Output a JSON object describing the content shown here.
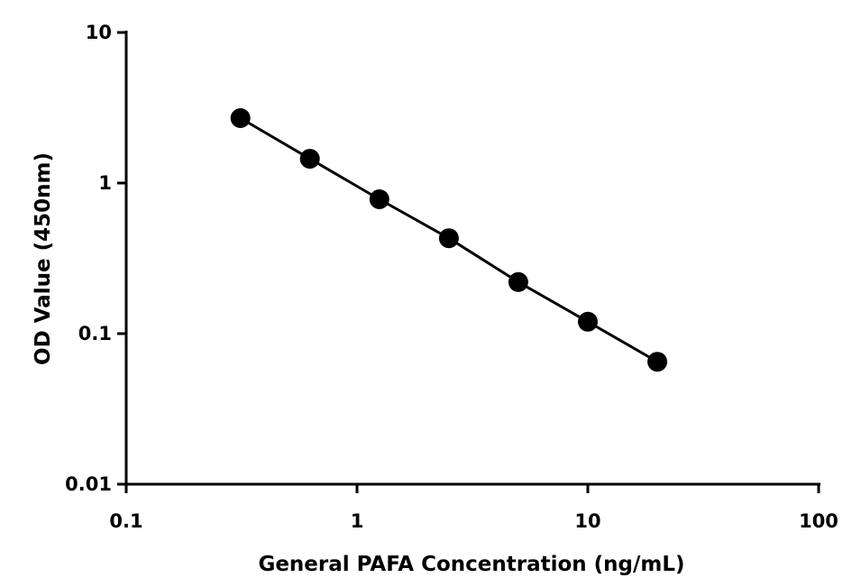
{
  "chart_data": {
    "type": "scatter",
    "title": "",
    "xlabel": "General PAFA Concentration (ng/mL)",
    "ylabel": "OD Value (450nm)",
    "xscale": "log",
    "yscale": "log",
    "xlim": [
      0.1,
      100
    ],
    "ylim": [
      0.01,
      10
    ],
    "xticks": [
      "0.1",
      "1",
      "10",
      "100"
    ],
    "yticks": [
      "0.01",
      "0.1",
      "1",
      "10"
    ],
    "grid": false,
    "legend": "none",
    "series": [
      {
        "x": [
          0.3125,
          0.625,
          1.25,
          2.5,
          5,
          10,
          20
        ],
        "y": [
          2.7,
          1.45,
          0.78,
          0.43,
          0.22,
          0.12,
          0.065
        ],
        "marker": "filled-circle",
        "line": "connected",
        "color": "#000000"
      }
    ]
  }
}
